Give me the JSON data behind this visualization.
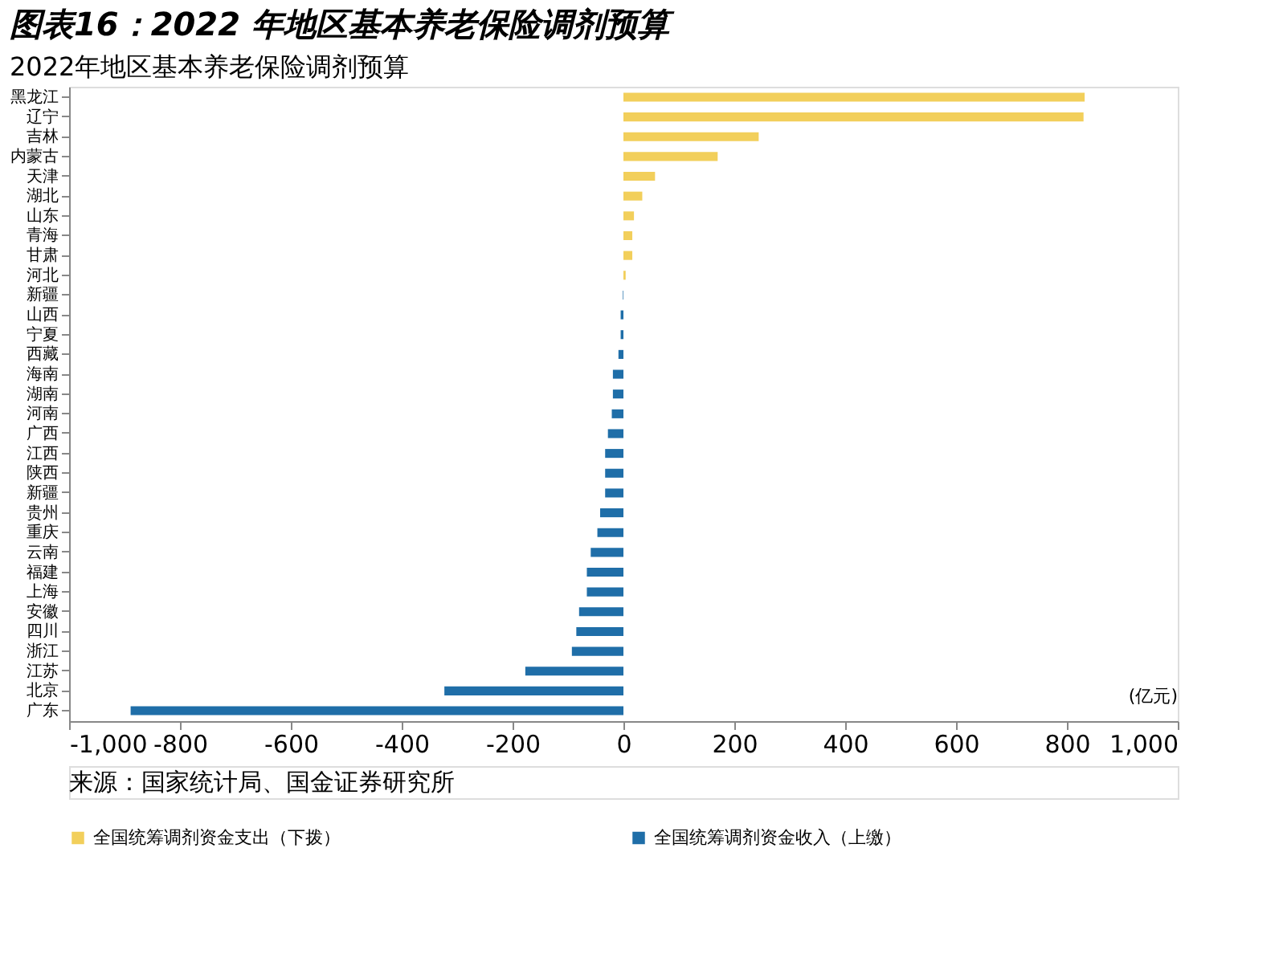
{
  "chart_data": {
    "type": "bar",
    "orientation": "horizontal",
    "title": "图表16：2022 年地区基本养老保险调剂预算",
    "subtitle": "2022年地区基本养老保险调剂预算",
    "categories": [
      "黑龙江",
      "辽宁",
      "吉林",
      "内蒙古",
      "天津",
      "湖北",
      "山东",
      "青海",
      "甘肃",
      "河北",
      "新疆",
      "山西",
      "宁夏",
      "西藏",
      "海南",
      "湖南",
      "河南",
      "广西",
      "江西",
      "陕西",
      "新疆",
      "贵州",
      "重庆",
      "云南",
      "福建",
      "上海",
      "安徽",
      "四川",
      "浙江",
      "江苏",
      "北京",
      "广东"
    ],
    "series": [
      {
        "name": "全国统筹调剂资金支出（下拨）",
        "color": "#f2cf5b",
        "values": [
          832,
          830,
          244,
          170,
          57,
          34,
          19,
          16,
          16,
          4,
          null,
          null,
          null,
          null,
          null,
          null,
          null,
          null,
          null,
          null,
          null,
          null,
          null,
          null,
          null,
          null,
          null,
          null,
          null,
          null,
          null,
          null
        ]
      },
      {
        "name": "全国统筹调剂资金收入（上缴）",
        "color": "#1f6ea8",
        "values": [
          null,
          null,
          null,
          null,
          null,
          null,
          null,
          null,
          null,
          null,
          -1,
          -5,
          -5,
          -9,
          -19,
          -19,
          -21,
          -28,
          -33,
          -33,
          -33,
          -42,
          -47,
          -59,
          -66,
          -66,
          -80,
          -85,
          -93,
          -177,
          -323,
          -889
        ]
      }
    ],
    "xlim": [
      -1000,
      1000
    ],
    "xticks": [
      {
        "value": -1000,
        "label": "-1,000"
      },
      -800,
      -600,
      -400,
      -200,
      0,
      200,
      400,
      600,
      800,
      {
        "value": 1000,
        "label": "1,000"
      }
    ],
    "grid": false,
    "legend": "bottom",
    "annotations": [
      "(亿元)",
      "来源：国家统计局、国金证券研究所"
    ]
  }
}
